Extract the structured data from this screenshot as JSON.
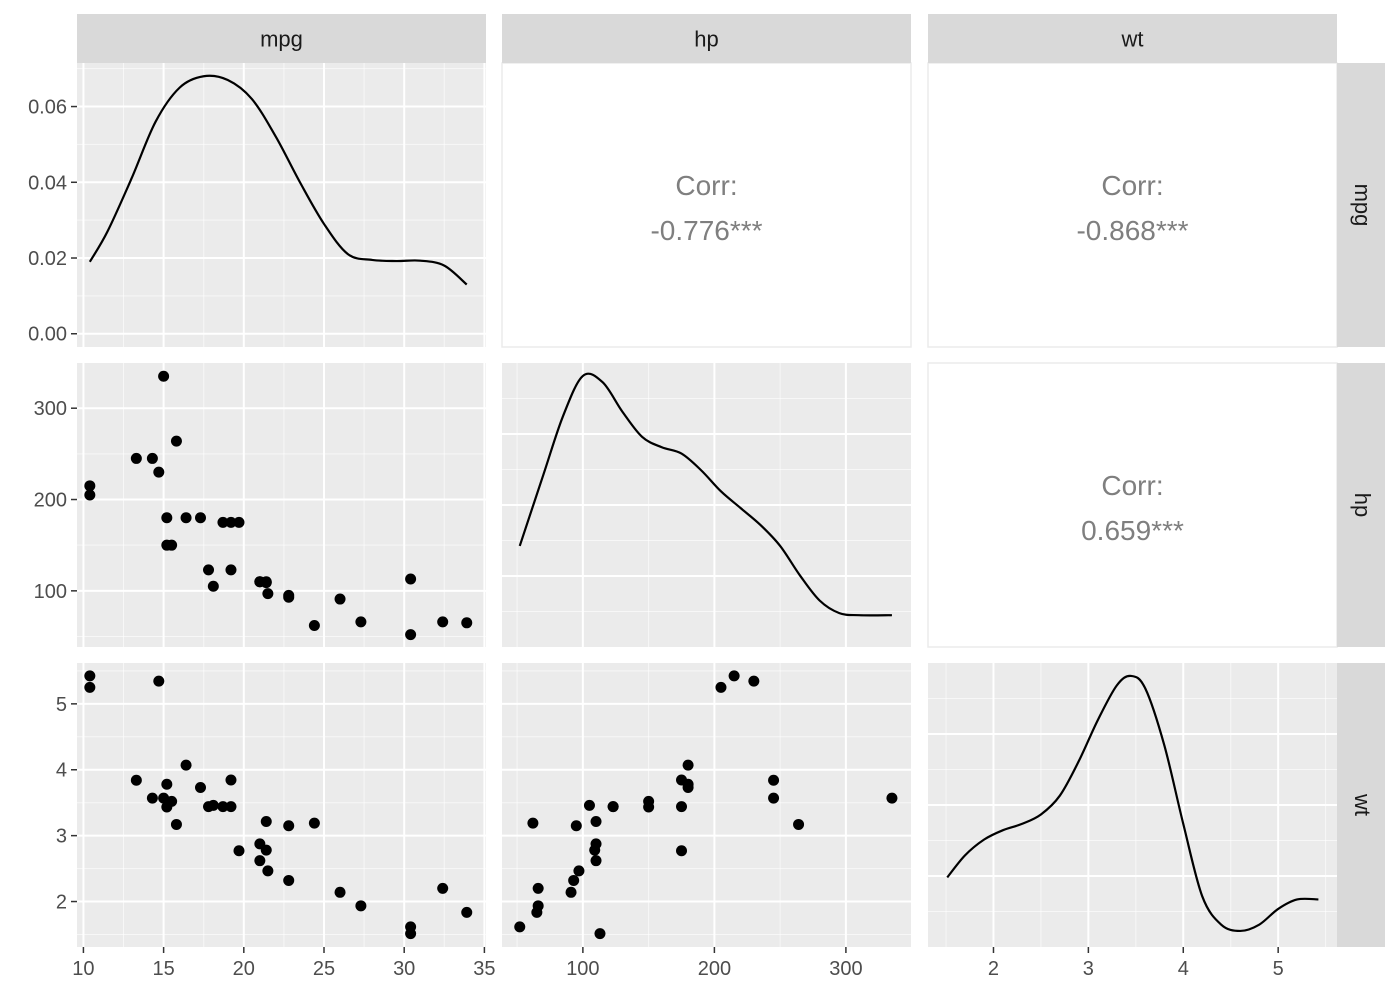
{
  "chart_data": {
    "type": "scatter",
    "title": "",
    "variables": [
      "mpg",
      "hp",
      "wt"
    ],
    "colors": {
      "panel_bg": "#ebebeb",
      "grid_major": "#ffffff",
      "strip_bg": "#d9d9d9",
      "point": "#000000",
      "corr_text": "#7f7f7f",
      "corr_panel_border": "#ebebeb"
    },
    "axes": {
      "mpg": {
        "range": [
          9.6,
          35.1
        ],
        "ticks": [
          10,
          15,
          20,
          25,
          30,
          35
        ],
        "tick_labels": [
          "10",
          "15",
          "20",
          "25",
          "30",
          "35"
        ]
      },
      "hp": {
        "range": [
          38.5,
          349.5
        ],
        "ticks": [
          100,
          200,
          300
        ],
        "tick_labels": [
          "100",
          "200",
          "300"
        ]
      },
      "wt": {
        "range": [
          1.31,
          5.62
        ],
        "ticks": [
          2,
          3,
          4,
          5
        ],
        "tick_labels": [
          "2",
          "3",
          "4",
          "5"
        ]
      },
      "density_mpg": {
        "range": [
          -0.0035,
          0.0715
        ],
        "ticks": [
          0,
          0.02,
          0.04,
          0.06
        ],
        "tick_labels": [
          "0.00",
          "0.02",
          "0.04",
          "0.06"
        ]
      }
    },
    "correlations": [
      {
        "row": "mpg",
        "col": "hp",
        "label": "Corr:",
        "value": "-0.776***"
      },
      {
        "row": "mpg",
        "col": "wt",
        "label": "Corr:",
        "value": "-0.868***"
      },
      {
        "row": "hp",
        "col": "wt",
        "label": "Corr:",
        "value": "0.659***"
      }
    ],
    "densities": {
      "mpg": {
        "x": [
          10.4,
          11.5,
          13,
          14.5,
          16,
          17.5,
          19,
          20.5,
          22,
          23.5,
          25,
          26.5,
          28,
          29.5,
          31,
          32.5,
          33.9
        ],
        "y": [
          0.019,
          0.027,
          0.041,
          0.056,
          0.065,
          0.068,
          0.067,
          0.062,
          0.052,
          0.04,
          0.029,
          0.021,
          0.0195,
          0.0192,
          0.0193,
          0.018,
          0.013
        ]
      },
      "hp": {
        "x": [
          52,
          70,
          85,
          100,
          115,
          130,
          145,
          160,
          175,
          190,
          205,
          220,
          235,
          250,
          265,
          280,
          295,
          310,
          335
        ],
        "y": [
          0.0021,
          0.0038,
          0.0052,
          0.00615,
          0.006,
          0.0053,
          0.0047,
          0.00445,
          0.0043,
          0.0039,
          0.0034,
          0.003,
          0.0026,
          0.0021,
          0.0014,
          0.0008,
          0.0005,
          0.00045,
          0.00045
        ]
      },
      "wt": {
        "x": [
          1.513,
          1.7,
          1.9,
          2.1,
          2.3,
          2.5,
          2.7,
          2.9,
          3.1,
          3.3,
          3.45,
          3.6,
          3.8,
          4.0,
          4.2,
          4.4,
          4.6,
          4.8,
          5.0,
          5.2,
          5.424
        ],
        "y": [
          0.18,
          0.25,
          0.3,
          0.33,
          0.35,
          0.38,
          0.44,
          0.55,
          0.68,
          0.79,
          0.82,
          0.78,
          0.6,
          0.35,
          0.12,
          0.03,
          0.01,
          0.03,
          0.08,
          0.11,
          0.11
        ]
      }
    },
    "mtcars": {
      "mpg": [
        21,
        21,
        22.8,
        21.4,
        18.7,
        18.1,
        14.3,
        24.4,
        22.8,
        19.2,
        17.8,
        16.4,
        17.3,
        15.2,
        10.4,
        10.4,
        14.7,
        32.4,
        30.4,
        33.9,
        21.5,
        15.5,
        15.2,
        13.3,
        19.2,
        27.3,
        26,
        30.4,
        15.8,
        19.7,
        15,
        21.4
      ],
      "hp": [
        110,
        110,
        93,
        110,
        175,
        105,
        245,
        62,
        95,
        123,
        123,
        180,
        180,
        180,
        205,
        215,
        230,
        66,
        52,
        65,
        97,
        150,
        150,
        245,
        175,
        66,
        91,
        113,
        264,
        175,
        335,
        109
      ],
      "wt": [
        2.62,
        2.875,
        2.32,
        3.215,
        3.44,
        3.46,
        3.57,
        3.19,
        3.15,
        3.44,
        3.44,
        4.07,
        3.73,
        3.78,
        5.25,
        5.424,
        5.345,
        2.2,
        1.615,
        1.835,
        2.465,
        3.52,
        3.435,
        3.84,
        3.845,
        1.935,
        2.14,
        1.513,
        3.17,
        2.77,
        3.57,
        2.78
      ]
    }
  }
}
